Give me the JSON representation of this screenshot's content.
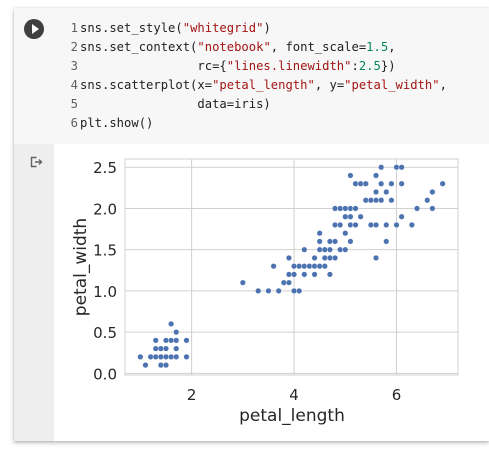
{
  "code": {
    "lines": [
      {
        "num": "1",
        "parts": [
          [
            "",
            "sns.set_style("
          ],
          [
            "s",
            "\"whitegrid\""
          ],
          [
            "",
            ")"
          ]
        ]
      },
      {
        "num": "2",
        "parts": [
          [
            "",
            "sns.set_context("
          ],
          [
            "s",
            "\"notebook\""
          ],
          [
            "",
            ", font_scale="
          ],
          [
            "n",
            "1.5"
          ],
          [
            "",
            ","
          ]
        ]
      },
      {
        "num": "3",
        "parts": [
          [
            "",
            "                rc={"
          ],
          [
            "s",
            "\"lines.linewidth\""
          ],
          [
            "",
            ":"
          ],
          [
            "n",
            "2.5"
          ],
          [
            "",
            "})"
          ]
        ]
      },
      {
        "num": "4",
        "parts": [
          [
            "",
            "sns.scatterplot(x="
          ],
          [
            "s",
            "\"petal_length\""
          ],
          [
            "",
            ", y="
          ],
          [
            "s",
            "\"petal_width\""
          ],
          [
            "",
            ","
          ]
        ]
      },
      {
        "num": "5",
        "parts": [
          [
            "",
            "                data=iris)"
          ]
        ]
      },
      {
        "num": "6",
        "parts": [
          [
            "",
            "plt.show()"
          ]
        ]
      }
    ]
  },
  "icons": {
    "run": "play-circle-icon",
    "output": "output-redirect-icon"
  },
  "colors": {
    "point": "#4c72b0",
    "grid": "#d0d0d0",
    "text": "#262626",
    "code_bg": "#f7f7f7",
    "gutter_bg": "#eeeeee"
  },
  "chart_data": {
    "type": "scatter",
    "xlabel": "petal_length",
    "ylabel": "petal_width",
    "xlim": [
      0.7,
      7.2
    ],
    "ylim": [
      -0.02,
      2.6
    ],
    "xticks": [
      2,
      4,
      6
    ],
    "yticks": [
      0.0,
      0.5,
      1.0,
      1.5,
      2.0,
      2.5
    ],
    "ytick_labels": [
      "0.0",
      "0.5",
      "1.0",
      "1.5",
      "2.0",
      "2.5"
    ],
    "grid": true,
    "points": [
      [
        1.0,
        0.2
      ],
      [
        1.1,
        0.1
      ],
      [
        1.2,
        0.2
      ],
      [
        1.3,
        0.2
      ],
      [
        1.3,
        0.3
      ],
      [
        1.3,
        0.4
      ],
      [
        1.4,
        0.1
      ],
      [
        1.4,
        0.2
      ],
      [
        1.4,
        0.3
      ],
      [
        1.5,
        0.1
      ],
      [
        1.5,
        0.2
      ],
      [
        1.5,
        0.3
      ],
      [
        1.5,
        0.4
      ],
      [
        1.6,
        0.2
      ],
      [
        1.6,
        0.4
      ],
      [
        1.6,
        0.6
      ],
      [
        1.7,
        0.2
      ],
      [
        1.7,
        0.3
      ],
      [
        1.7,
        0.4
      ],
      [
        1.7,
        0.5
      ],
      [
        1.9,
        0.2
      ],
      [
        1.9,
        0.4
      ],
      [
        3.0,
        1.1
      ],
      [
        3.3,
        1.0
      ],
      [
        3.5,
        1.0
      ],
      [
        3.6,
        1.3
      ],
      [
        3.7,
        1.0
      ],
      [
        3.8,
        1.1
      ],
      [
        3.9,
        1.1
      ],
      [
        3.9,
        1.2
      ],
      [
        3.9,
        1.4
      ],
      [
        4.0,
        1.0
      ],
      [
        4.0,
        1.2
      ],
      [
        4.0,
        1.3
      ],
      [
        4.1,
        1.0
      ],
      [
        4.1,
        1.3
      ],
      [
        4.2,
        1.2
      ],
      [
        4.2,
        1.3
      ],
      [
        4.2,
        1.5
      ],
      [
        4.3,
        1.3
      ],
      [
        4.4,
        1.2
      ],
      [
        4.4,
        1.3
      ],
      [
        4.4,
        1.4
      ],
      [
        4.5,
        1.3
      ],
      [
        4.5,
        1.5
      ],
      [
        4.5,
        1.6
      ],
      [
        4.5,
        1.7
      ],
      [
        4.6,
        1.3
      ],
      [
        4.6,
        1.4
      ],
      [
        4.6,
        1.5
      ],
      [
        4.7,
        1.2
      ],
      [
        4.7,
        1.4
      ],
      [
        4.7,
        1.5
      ],
      [
        4.7,
        1.6
      ],
      [
        4.8,
        1.4
      ],
      [
        4.8,
        1.8
      ],
      [
        4.9,
        1.5
      ],
      [
        4.9,
        1.8
      ],
      [
        5.0,
        1.5
      ],
      [
        5.0,
        1.7
      ],
      [
        5.1,
        1.6
      ],
      [
        5.1,
        1.8
      ],
      [
        5.1,
        1.9
      ],
      [
        5.1,
        2.0
      ],
      [
        5.2,
        2.0
      ],
      [
        5.2,
        2.3
      ],
      [
        5.3,
        1.9
      ],
      [
        5.3,
        2.3
      ],
      [
        5.0,
        1.9
      ],
      [
        5.0,
        2.0
      ],
      [
        4.8,
        1.6
      ],
      [
        4.9,
        2.0
      ],
      [
        4.8,
        2.0
      ],
      [
        5.1,
        2.4
      ],
      [
        5.4,
        2.1
      ],
      [
        5.4,
        2.3
      ],
      [
        5.5,
        1.8
      ],
      [
        5.5,
        2.1
      ],
      [
        5.6,
        1.4
      ],
      [
        5.6,
        1.8
      ],
      [
        5.6,
        2.1
      ],
      [
        5.6,
        2.2
      ],
      [
        5.6,
        2.4
      ],
      [
        5.7,
        2.1
      ],
      [
        5.7,
        2.3
      ],
      [
        5.7,
        2.5
      ],
      [
        5.8,
        1.6
      ],
      [
        5.8,
        1.8
      ],
      [
        5.8,
        2.2
      ],
      [
        5.9,
        2.1
      ],
      [
        5.9,
        2.3
      ],
      [
        6.0,
        1.8
      ],
      [
        6.0,
        2.5
      ],
      [
        6.1,
        1.9
      ],
      [
        6.1,
        2.3
      ],
      [
        6.1,
        2.5
      ],
      [
        6.3,
        1.8
      ],
      [
        6.4,
        2.0
      ],
      [
        6.6,
        2.1
      ],
      [
        6.7,
        2.0
      ],
      [
        6.7,
        2.2
      ],
      [
        6.9,
        2.3
      ],
      [
        5.2,
        1.8
      ]
    ]
  }
}
